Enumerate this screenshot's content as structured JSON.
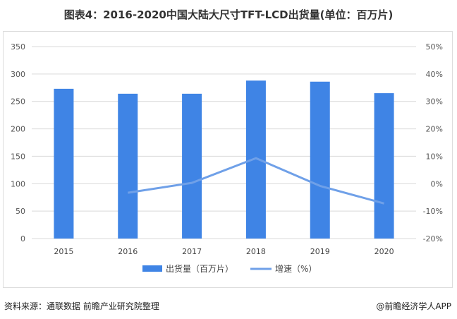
{
  "title": "图表4：2016-2020中国大陆大尺寸TFT-LCD出货量(单位：百万片)",
  "source": "资料来源：通联数据 前瞻产业研究院整理",
  "brand": "@前瞻经济学人APP",
  "colors": {
    "bar": "#3f84e5",
    "line": "#6fa0e8"
  },
  "chart_data": {
    "type": "bar",
    "categories": [
      "2015",
      "2016",
      "2017",
      "2018",
      "2019",
      "2020"
    ],
    "series": [
      {
        "name": "出货量（百万片）",
        "type": "bar",
        "axis": "left",
        "values": [
          273,
          264,
          264,
          288,
          286,
          265
        ]
      },
      {
        "name": "增速（%）",
        "type": "line",
        "axis": "right",
        "values": [
          null,
          -3.3,
          0.3,
          9.3,
          -0.8,
          -7.2
        ]
      }
    ],
    "ylim_left": [
      0,
      350
    ],
    "yticks_left": [
      "0",
      "50",
      "100",
      "150",
      "200",
      "250",
      "300",
      "350"
    ],
    "ylim_right": [
      -20,
      50
    ],
    "yticks_right": [
      "-20%",
      "-10%",
      "0%",
      "10%",
      "20%",
      "30%",
      "40%",
      "50%"
    ],
    "grid": true,
    "legend": "bottom"
  }
}
